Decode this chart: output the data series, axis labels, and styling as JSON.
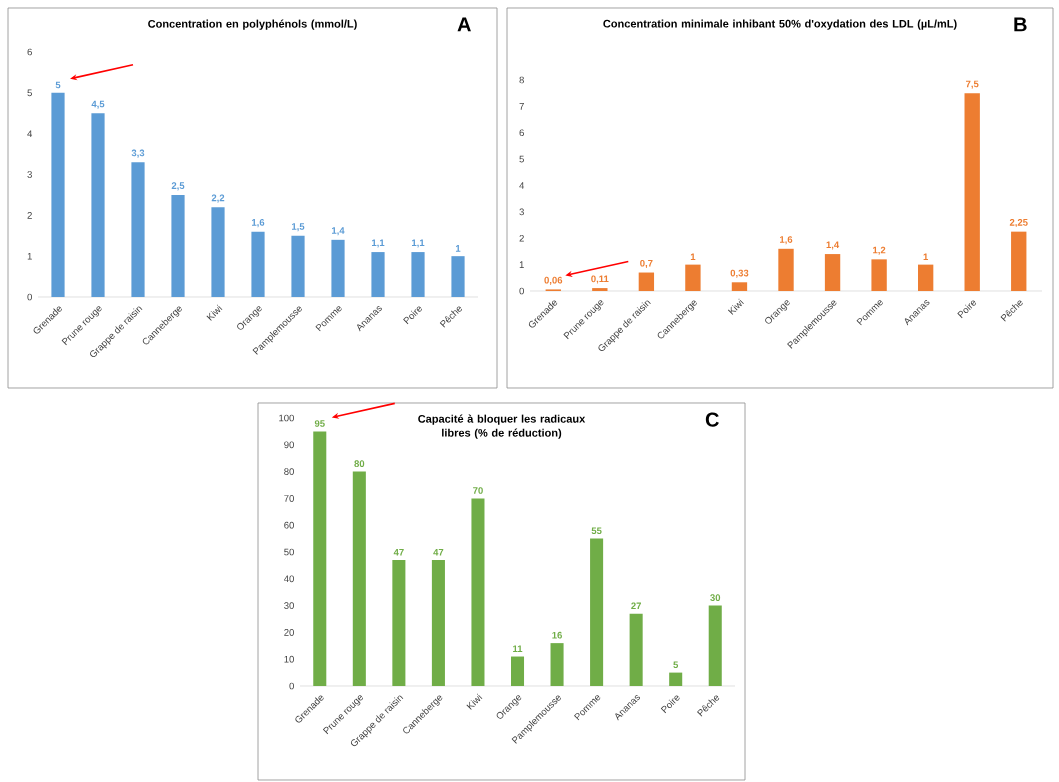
{
  "chart_data": [
    {
      "type": "bar",
      "title": "Concentration en polyphénols (mmol/L)",
      "annotations": [
        "A"
      ],
      "categories": [
        "Grenade",
        "Prune rouge",
        "Grappe de raisin",
        "Canneberge",
        "Kiwi",
        "Orange",
        "Pamplemousse",
        "Pomme",
        "Ananas",
        "Poire",
        "Pêche"
      ],
      "values": [
        5,
        4.5,
        3.3,
        2.5,
        2.2,
        1.6,
        1.5,
        1.4,
        1.1,
        1.1,
        1
      ],
      "value_labels": [
        "5",
        "4,5",
        "3,3",
        "2,5",
        "2,2",
        "1,6",
        "1,5",
        "1,4",
        "1,1",
        "1,1",
        "1"
      ],
      "color": "#5b9bd5",
      "ylim": [
        0,
        6
      ],
      "yticks": [
        0,
        1,
        2,
        3,
        4,
        5,
        6
      ]
    },
    {
      "type": "bar",
      "title": "Concentration minimale inhibant 50% d'oxydation des LDL (µL/mL)",
      "annotations": [
        "B"
      ],
      "categories": [
        "Grenade",
        "Prune rouge",
        "Grappe de raisin",
        "Canneberge",
        "Kiwi",
        "Orange",
        "Pamplemousse",
        "Pomme",
        "Ananas",
        "Poire",
        "Pêche"
      ],
      "values": [
        0.06,
        0.11,
        0.7,
        1,
        0.33,
        1.6,
        1.4,
        1.2,
        1,
        7.5,
        2.25
      ],
      "value_labels": [
        "0,06",
        "0,11",
        "0,7",
        "1",
        "0,33",
        "1,6",
        "1,4",
        "1,2",
        "1",
        "7,5",
        "2,25"
      ],
      "color": "#ed7d31",
      "ylim": [
        0,
        8
      ],
      "yticks": [
        0,
        1,
        2,
        3,
        4,
        5,
        6,
        7,
        8
      ]
    },
    {
      "type": "bar",
      "title": "Capacité à bloquer les radicaux libres (% de réduction)",
      "annotations": [
        "C"
      ],
      "categories": [
        "Grenade",
        "Prune rouge",
        "Grappe de raisin",
        "Canneberge",
        "Kiwi",
        "Orange",
        "Pamplemousse",
        "Pomme",
        "Ananas",
        "Poire",
        "Pêche"
      ],
      "values": [
        95,
        80,
        47,
        47,
        70,
        11,
        16,
        55,
        27,
        5,
        30
      ],
      "data_labels": true,
      "color": "#70ad47",
      "ylim": [
        0,
        100
      ],
      "yticks": [
        0,
        10,
        20,
        30,
        40,
        50,
        60,
        70,
        80,
        90,
        100
      ]
    }
  ]
}
